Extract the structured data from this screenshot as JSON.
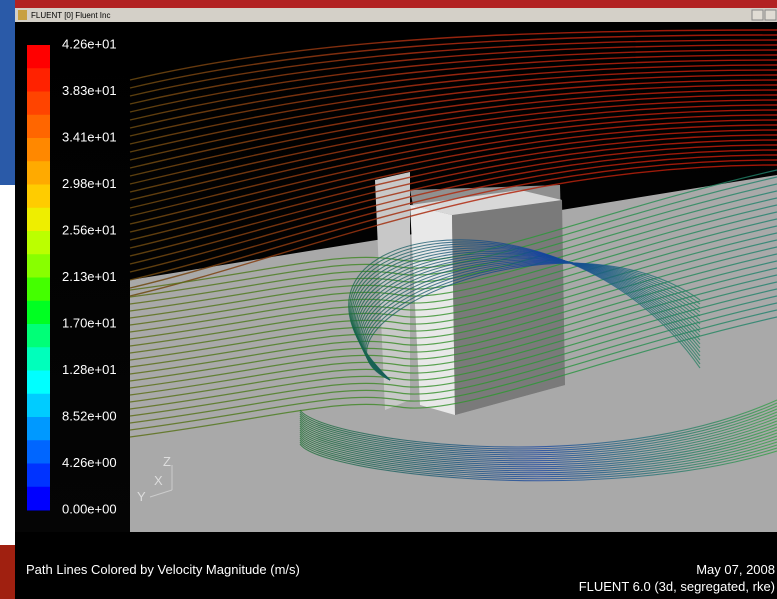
{
  "window": {
    "title": "FLUENT [0] Fluent Inc"
  },
  "colorbar": {
    "labels": [
      "4.26e+01",
      "3.83e+01",
      "3.41e+01",
      "2.98e+01",
      "2.56e+01",
      "2.13e+01",
      "1.70e+01",
      "1.28e+01",
      "8.52e+00",
      "4.26e+00",
      "0.00e+00"
    ],
    "colors": [
      "#ff0000",
      "#ff2200",
      "#ff4400",
      "#ff6600",
      "#ff8800",
      "#ffaa00",
      "#ffcc00",
      "#eeee00",
      "#bbff00",
      "#88ff00",
      "#44ff00",
      "#00ff22",
      "#00ff77",
      "#00ffbb",
      "#00ffff",
      "#00ccff",
      "#0099ff",
      "#0066ff",
      "#0033ff",
      "#0000ff"
    ]
  },
  "axes_triad": {
    "z": "Z",
    "x": "X",
    "y": "Y"
  },
  "footer": {
    "caption": "Path Lines Colored by Velocity Magnitude (m/s)",
    "date": "May 07, 2008",
    "version": "FLUENT 6.0 (3d, segregated, rke)"
  }
}
